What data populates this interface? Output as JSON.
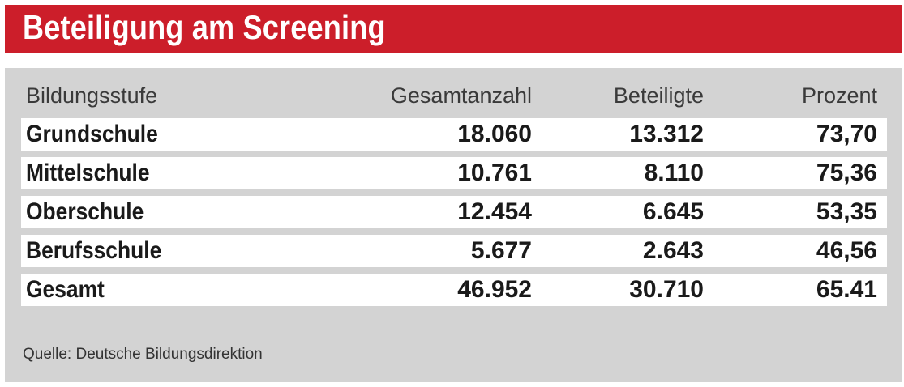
{
  "title": "Beteiligung am Screening",
  "colors": {
    "title_bar": "#cc1e2a",
    "panel": "#d3d3d3"
  },
  "chart_data": {
    "type": "table",
    "title": "Beteiligung am Screening",
    "columns": [
      "Bildungsstufe",
      "Gesamtanzahl",
      "Beteiligte",
      "Prozent"
    ],
    "rows": [
      [
        "Grundschule",
        "18.060",
        "13.312",
        "73,70"
      ],
      [
        "Mittelschule",
        "10.761",
        "8.110",
        "75,36"
      ],
      [
        "Oberschule",
        "12.454",
        "6.645",
        "53,35"
      ],
      [
        "Berufsschule",
        "5.677",
        "2.643",
        "46,56"
      ],
      [
        "Gesamt",
        "46.952",
        "30.710",
        "65.41"
      ]
    ],
    "source": "Quelle: Deutsche Bildungsdirektion"
  }
}
